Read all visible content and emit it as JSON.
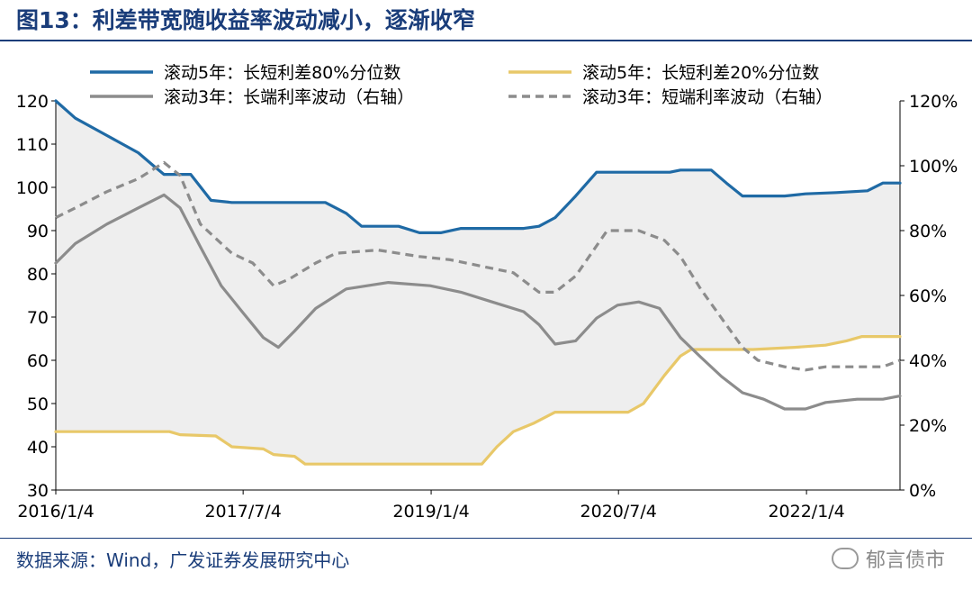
{
  "header": {
    "title": "图13：利差带宽随收益率波动减小，逐渐收窄"
  },
  "footer": {
    "source": "数据来源：Wind，广发证券发展研究中心",
    "watermark": "郁言债市"
  },
  "colors": {
    "blue": "#1f6aa5",
    "yellow": "#e8c869",
    "gray": "#8c8c8c",
    "band": "#eeeeee",
    "title": "#1a3d7a"
  },
  "chart_data": {
    "type": "line",
    "title": "利差带宽随收益率波动减小，逐渐收窄",
    "x_ticks": [
      "2016/1/4",
      "2017/7/4",
      "2019/1/4",
      "2020/7/4",
      "2022/1/4"
    ],
    "x_range": [
      "2016/1/4",
      "2022/10/4"
    ],
    "y_left": {
      "ticks": [
        30,
        40,
        50,
        60,
        70,
        80,
        90,
        100,
        110,
        120
      ],
      "range": [
        30,
        120
      ]
    },
    "y_right": {
      "ticks": [
        "0%",
        "20%",
        "40%",
        "60%",
        "80%",
        "100%",
        "120%"
      ],
      "range": [
        0,
        1.2
      ]
    },
    "legend_position": "top",
    "shaded_band": "between 长短利差80%分位数 and 长短利差20%分位数",
    "series": [
      {
        "name": "滚动5年：长短利差80%分位数",
        "axis": "left",
        "style": "solid",
        "color": "#1f6aa5",
        "points": [
          [
            "2016/1/4",
            120
          ],
          [
            "2016/3/1",
            116
          ],
          [
            "2016/6/1",
            112
          ],
          [
            "2016/9/1",
            108
          ],
          [
            "2016/10/15",
            105
          ],
          [
            "2016/11/15",
            103
          ],
          [
            "2017/2/1",
            103
          ],
          [
            "2017/4/1",
            97
          ],
          [
            "2017/6/1",
            96.5
          ],
          [
            "2017/12/1",
            96.5
          ],
          [
            "2018/3/1",
            96.5
          ],
          [
            "2018/5/1",
            94
          ],
          [
            "2018/6/15",
            91
          ],
          [
            "2018/10/1",
            91
          ],
          [
            "2018/12/1",
            89.5
          ],
          [
            "2019/2/1",
            89.5
          ],
          [
            "2019/4/1",
            90.5
          ],
          [
            "2019/8/1",
            90.5
          ],
          [
            "2019/10/1",
            90.5
          ],
          [
            "2019/11/15",
            91
          ],
          [
            "2020/1/1",
            93
          ],
          [
            "2020/3/1",
            98
          ],
          [
            "2020/5/1",
            103.5
          ],
          [
            "2020/9/1",
            103.5
          ],
          [
            "2020/12/1",
            103.5
          ],
          [
            "2021/1/1",
            104
          ],
          [
            "2021/4/1",
            104
          ],
          [
            "2021/5/15",
            101
          ],
          [
            "2021/7/1",
            98
          ],
          [
            "2021/11/1",
            98
          ],
          [
            "2022/1/1",
            98.5
          ],
          [
            "2022/4/1",
            98.8
          ],
          [
            "2022/7/1",
            99.2
          ],
          [
            "2022/8/15",
            101
          ],
          [
            "2022/10/4",
            101
          ]
        ]
      },
      {
        "name": "滚动5年：长短利差20%分位数",
        "axis": "left",
        "style": "solid",
        "color": "#e8c869",
        "points": [
          [
            "2016/1/4",
            43.5
          ],
          [
            "2016/7/1",
            43.5
          ],
          [
            "2016/12/1",
            43.5
          ],
          [
            "2017/1/1",
            42.8
          ],
          [
            "2017/4/15",
            42.5
          ],
          [
            "2017/6/1",
            40
          ],
          [
            "2017/9/1",
            39.5
          ],
          [
            "2017/10/1",
            38.2
          ],
          [
            "2017/12/1",
            37.8
          ],
          [
            "2018/1/1",
            36
          ],
          [
            "2018/6/1",
            36
          ],
          [
            "2019/6/1",
            36
          ],
          [
            "2019/7/15",
            40
          ],
          [
            "2019/9/1",
            43.5
          ],
          [
            "2019/11/1",
            45.5
          ],
          [
            "2020/1/1",
            48
          ],
          [
            "2020/6/1",
            48
          ],
          [
            "2020/8/1",
            48
          ],
          [
            "2020/9/15",
            50
          ],
          [
            "2020/11/15",
            56.5
          ],
          [
            "2021/1/1",
            61
          ],
          [
            "2021/2/1",
            62.5
          ],
          [
            "2021/8/1",
            62.5
          ],
          [
            "2021/12/1",
            63
          ],
          [
            "2022/3/1",
            63.5
          ],
          [
            "2022/5/1",
            64.5
          ],
          [
            "2022/6/15",
            65.5
          ],
          [
            "2022/10/4",
            65.5
          ]
        ]
      },
      {
        "name": "滚动3年：长端利率波动（右轴）",
        "axis": "right",
        "style": "solid",
        "color": "#8c8c8c",
        "points": [
          [
            "2016/1/4",
            0.7
          ],
          [
            "2016/3/1",
            0.76
          ],
          [
            "2016/6/1",
            0.82
          ],
          [
            "2016/9/1",
            0.87
          ],
          [
            "2016/11/15",
            0.91
          ],
          [
            "2017/1/1",
            0.87
          ],
          [
            "2017/3/1",
            0.75
          ],
          [
            "2017/5/1",
            0.63
          ],
          [
            "2017/7/1",
            0.55
          ],
          [
            "2017/9/1",
            0.47
          ],
          [
            "2017/10/15",
            0.44
          ],
          [
            "2017/12/1",
            0.49
          ],
          [
            "2018/2/1",
            0.56
          ],
          [
            "2018/5/1",
            0.62
          ],
          [
            "2018/9/1",
            0.64
          ],
          [
            "2019/1/1",
            0.63
          ],
          [
            "2019/4/1",
            0.61
          ],
          [
            "2019/7/1",
            0.58
          ],
          [
            "2019/10/1",
            0.55
          ],
          [
            "2019/11/15",
            0.51
          ],
          [
            "2020/1/1",
            0.45
          ],
          [
            "2020/3/1",
            0.46
          ],
          [
            "2020/5/1",
            0.53
          ],
          [
            "2020/7/1",
            0.57
          ],
          [
            "2020/9/1",
            0.58
          ],
          [
            "2020/11/1",
            0.56
          ],
          [
            "2021/1/1",
            0.47
          ],
          [
            "2021/3/1",
            0.41
          ],
          [
            "2021/5/1",
            0.35
          ],
          [
            "2021/7/1",
            0.3
          ],
          [
            "2021/9/1",
            0.28
          ],
          [
            "2021/11/1",
            0.25
          ],
          [
            "2022/1/1",
            0.25
          ],
          [
            "2022/3/1",
            0.27
          ],
          [
            "2022/6/1",
            0.28
          ],
          [
            "2022/8/15",
            0.28
          ],
          [
            "2022/10/4",
            0.29
          ]
        ]
      },
      {
        "name": "滚动3年：短端利率波动（右轴）",
        "axis": "right",
        "style": "dashed",
        "color": "#8c8c8c",
        "points": [
          [
            "2016/1/4",
            0.84
          ],
          [
            "2016/3/1",
            0.87
          ],
          [
            "2016/6/1",
            0.92
          ],
          [
            "2016/9/1",
            0.96
          ],
          [
            "2016/11/15",
            1.01
          ],
          [
            "2017/1/1",
            0.97
          ],
          [
            "2017/3/1",
            0.82
          ],
          [
            "2017/6/1",
            0.73
          ],
          [
            "2017/8/1",
            0.7
          ],
          [
            "2017/10/1",
            0.63
          ],
          [
            "2017/11/15",
            0.65
          ],
          [
            "2018/2/1",
            0.7
          ],
          [
            "2018/4/1",
            0.73
          ],
          [
            "2018/8/1",
            0.74
          ],
          [
            "2018/12/1",
            0.72
          ],
          [
            "2019/3/1",
            0.71
          ],
          [
            "2019/6/1",
            0.69
          ],
          [
            "2019/9/1",
            0.67
          ],
          [
            "2019/11/15",
            0.61
          ],
          [
            "2020/1/1",
            0.61
          ],
          [
            "2020/3/1",
            0.66
          ],
          [
            "2020/6/1",
            0.8
          ],
          [
            "2020/9/1",
            0.8
          ],
          [
            "2020/11/15",
            0.77
          ],
          [
            "2021/1/1",
            0.72
          ],
          [
            "2021/3/1",
            0.62
          ],
          [
            "2021/5/1",
            0.53
          ],
          [
            "2021/7/1",
            0.44
          ],
          [
            "2021/8/15",
            0.4
          ],
          [
            "2021/11/1",
            0.38
          ],
          [
            "2022/1/1",
            0.37
          ],
          [
            "2022/3/1",
            0.38
          ],
          [
            "2022/6/1",
            0.38
          ],
          [
            "2022/8/15",
            0.38
          ],
          [
            "2022/10/4",
            0.4
          ]
        ]
      }
    ]
  }
}
